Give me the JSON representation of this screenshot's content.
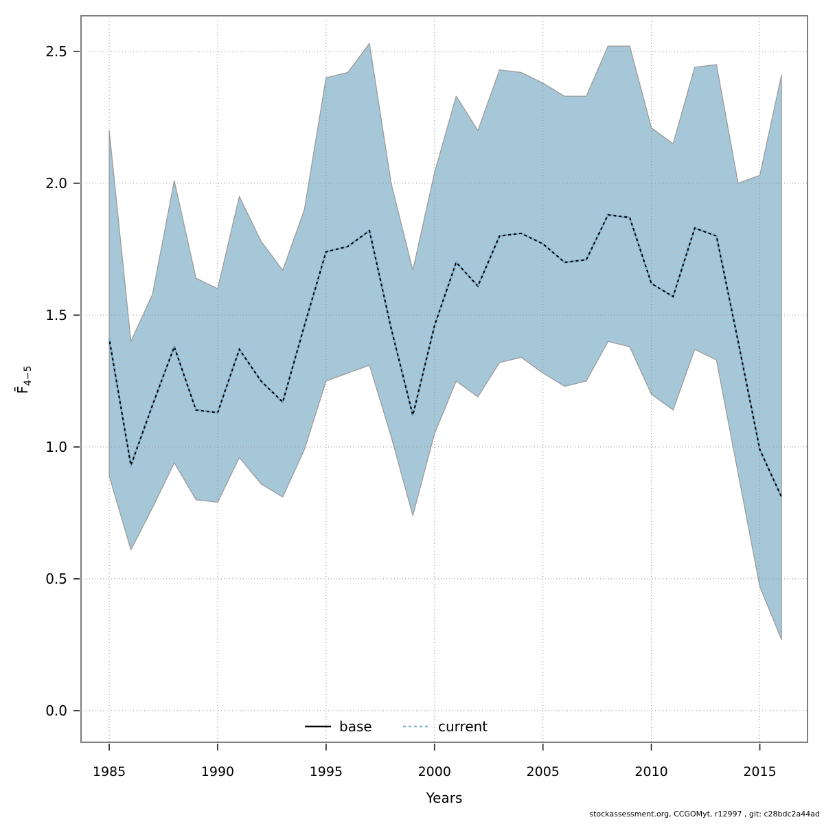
{
  "figure": {
    "xlabel": "Years",
    "ylabel_f": "F̄",
    "ylabel_sub": "4−5",
    "footer": "stockassessment.org, CCGOMyt, r12997 , git: c28bdc2a44ad"
  },
  "legend": {
    "items": [
      {
        "label": "base",
        "style": "solid",
        "color": "#000000"
      },
      {
        "label": "current",
        "style": "dashed",
        "color": "#7eb3d4"
      }
    ]
  },
  "colors": {
    "band_fill": "#a5c7d8",
    "band_edge": "#9b9b9b",
    "grid": "#8f8f8f",
    "frame": "#7e7e7e",
    "tick": "#333333",
    "text": "#000000",
    "base_line": "#000000",
    "current_line": "#7eb3d4"
  },
  "chart_data": {
    "type": "line",
    "title": "",
    "xlabel": "Years",
    "ylabel": "F̄_4−5",
    "grid": true,
    "legend_position": "bottom-center-inside",
    "xlim": [
      1983.7,
      2017.2
    ],
    "ylim": [
      -0.12,
      2.635
    ],
    "xticks": [
      1985,
      1990,
      1995,
      2000,
      2005,
      2010,
      2015
    ],
    "xtick_labels": [
      "1985",
      "1990",
      "1995",
      "2000",
      "2005",
      "2010",
      "2015"
    ],
    "yticks": [
      0.0,
      0.5,
      1.0,
      1.5,
      2.0,
      2.5
    ],
    "ytick_labels": [
      "0.0",
      "0.5",
      "1.0",
      "1.5",
      "2.0",
      "2.5"
    ],
    "x": [
      1985,
      1986,
      1987,
      1988,
      1989,
      1990,
      1991,
      1992,
      1993,
      1994,
      1995,
      1996,
      1997,
      1998,
      1999,
      2000,
      2001,
      2002,
      2003,
      2004,
      2005,
      2006,
      2007,
      2008,
      2009,
      2010,
      2011,
      2012,
      2013,
      2014,
      2015,
      2016
    ],
    "series": [
      {
        "name": "base",
        "values": [
          1.41,
          0.93,
          1.16,
          1.38,
          1.14,
          1.13,
          1.37,
          1.25,
          1.17,
          1.46,
          1.74,
          1.76,
          1.82,
          1.45,
          1.12,
          1.46,
          1.7,
          1.61,
          1.8,
          1.81,
          1.77,
          1.7,
          1.71,
          1.88,
          1.87,
          1.62,
          1.57,
          1.83,
          1.8,
          1.4,
          0.99,
          0.81
        ]
      },
      {
        "name": "current",
        "values": [
          1.41,
          0.93,
          1.16,
          1.38,
          1.14,
          1.13,
          1.37,
          1.25,
          1.17,
          1.46,
          1.74,
          1.76,
          1.82,
          1.45,
          1.12,
          1.46,
          1.7,
          1.61,
          1.8,
          1.81,
          1.77,
          1.7,
          1.71,
          1.88,
          1.87,
          1.62,
          1.57,
          1.83,
          1.8,
          1.4,
          0.99,
          0.81
        ]
      }
    ],
    "band": {
      "name": "confidence-band",
      "lower": [
        0.89,
        0.61,
        0.77,
        0.94,
        0.8,
        0.79,
        0.96,
        0.86,
        0.81,
        0.99,
        1.25,
        1.28,
        1.31,
        1.04,
        0.74,
        1.05,
        1.25,
        1.19,
        1.32,
        1.34,
        1.28,
        1.23,
        1.25,
        1.4,
        1.38,
        1.2,
        1.14,
        1.37,
        1.33,
        0.9,
        0.47,
        0.27
      ],
      "upper": [
        2.2,
        1.4,
        1.58,
        2.01,
        1.64,
        1.6,
        1.95,
        1.78,
        1.67,
        1.9,
        2.4,
        2.42,
        2.53,
        2.0,
        1.67,
        2.04,
        2.33,
        2.2,
        2.43,
        2.42,
        2.38,
        2.33,
        2.33,
        2.52,
        2.52,
        2.21,
        2.15,
        2.44,
        2.45,
        2.0,
        2.03,
        2.41
      ]
    }
  }
}
